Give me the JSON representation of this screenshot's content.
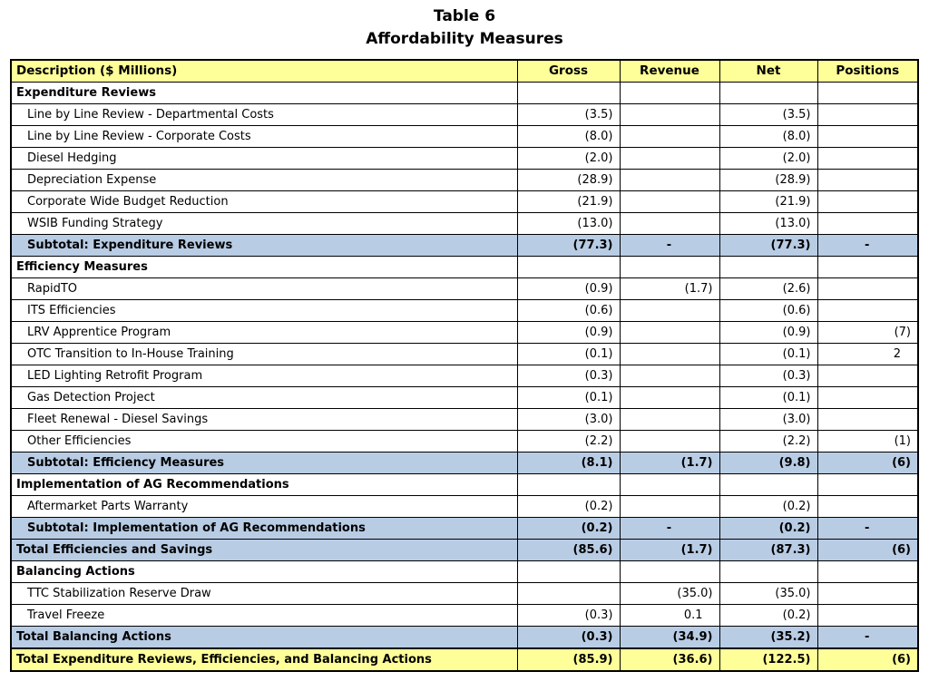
{
  "title": {
    "line1": "Table 6",
    "line2": "Affordability Measures"
  },
  "colors": {
    "header_bg": "#FFFF99",
    "subtotal_bg": "#B8CCE4",
    "grand_total_bg": "#FFFF99",
    "border": "#000000"
  },
  "table": {
    "columns": [
      "Description ($ Millions)",
      "Gross",
      "Revenue",
      "Net",
      "Positions"
    ],
    "rows": [
      {
        "type": "section",
        "label": "Expenditure Reviews",
        "values": [
          "",
          "",
          "",
          ""
        ]
      },
      {
        "type": "detail",
        "label": "Line by Line Review - Departmental Costs",
        "values": [
          "(3.5)",
          "",
          "(3.5)",
          ""
        ]
      },
      {
        "type": "detail",
        "label": "Line by Line Review - Corporate Costs",
        "values": [
          "(8.0)",
          "",
          "(8.0)",
          ""
        ]
      },
      {
        "type": "detail",
        "label": "Diesel Hedging",
        "values": [
          "(2.0)",
          "",
          "(2.0)",
          ""
        ]
      },
      {
        "type": "detail",
        "label": "Depreciation Expense",
        "values": [
          "(28.9)",
          "",
          "(28.9)",
          ""
        ]
      },
      {
        "type": "detail",
        "label": "Corporate Wide Budget Reduction",
        "values": [
          "(21.9)",
          "",
          "(21.9)",
          ""
        ]
      },
      {
        "type": "detail",
        "label": "WSIB Funding Strategy",
        "values": [
          "(13.0)",
          "",
          "(13.0)",
          ""
        ]
      },
      {
        "type": "subtotal",
        "label": "Subtotal: Expenditure Reviews",
        "values": [
          "(77.3)",
          "-",
          "(77.3)",
          "-"
        ]
      },
      {
        "type": "section",
        "label": "Efficiency Measures",
        "values": [
          "",
          "",
          "",
          ""
        ]
      },
      {
        "type": "detail",
        "label": "RapidTO",
        "values": [
          "(0.9)",
          "(1.7)",
          "(2.6)",
          ""
        ]
      },
      {
        "type": "detail",
        "label": "ITS Efficiencies",
        "values": [
          "(0.6)",
          "",
          "(0.6)",
          ""
        ]
      },
      {
        "type": "detail",
        "label": "LRV Apprentice Program",
        "values": [
          "(0.9)",
          "",
          "(0.9)",
          "(7)"
        ]
      },
      {
        "type": "detail",
        "label": "OTC Transition to In-House Training",
        "values": [
          "(0.1)",
          "",
          "(0.1)",
          "2"
        ]
      },
      {
        "type": "detail",
        "label": "LED Lighting Retrofit Program",
        "values": [
          "(0.3)",
          "",
          "(0.3)",
          ""
        ]
      },
      {
        "type": "detail",
        "label": "Gas Detection Project",
        "values": [
          "(0.1)",
          "",
          "(0.1)",
          ""
        ]
      },
      {
        "type": "detail",
        "label": "Fleet Renewal - Diesel Savings",
        "values": [
          "(3.0)",
          "",
          "(3.0)",
          ""
        ]
      },
      {
        "type": "detail",
        "label": "Other Efficiencies",
        "values": [
          "(2.2)",
          "",
          "(2.2)",
          "(1)"
        ]
      },
      {
        "type": "subtotal",
        "label": "Subtotal: Efficiency Measures",
        "values": [
          "(8.1)",
          "(1.7)",
          "(9.8)",
          "(6)"
        ]
      },
      {
        "type": "section",
        "label": "Implementation of AG Recommendations",
        "values": [
          "",
          "",
          "",
          ""
        ]
      },
      {
        "type": "detail",
        "label": "Aftermarket Parts Warranty",
        "values": [
          "(0.2)",
          "",
          "(0.2)",
          ""
        ]
      },
      {
        "type": "subtotal",
        "label": "Subtotal: Implementation of AG Recommendations",
        "values": [
          "(0.2)",
          "-",
          "(0.2)",
          "-"
        ]
      },
      {
        "type": "total",
        "label": "Total Efficiencies and Savings",
        "values": [
          "(85.6)",
          "(1.7)",
          "(87.3)",
          "(6)"
        ]
      },
      {
        "type": "section",
        "label": "Balancing Actions",
        "values": [
          "",
          "",
          "",
          ""
        ]
      },
      {
        "type": "detail",
        "label": "TTC Stabilization Reserve Draw",
        "values": [
          "",
          "(35.0)",
          "(35.0)",
          ""
        ]
      },
      {
        "type": "detail",
        "label": "Travel Freeze",
        "values": [
          "(0.3)",
          "0.1",
          "(0.2)",
          ""
        ]
      },
      {
        "type": "total",
        "label": "Total Balancing Actions",
        "values": [
          "(0.3)",
          "(34.9)",
          "(35.2)",
          "-"
        ]
      },
      {
        "type": "grand",
        "label": "Total Expenditure Reviews, Efficiencies, and Balancing Actions",
        "values": [
          "(85.9)",
          "(36.6)",
          "(122.5)",
          "(6)"
        ]
      }
    ]
  }
}
